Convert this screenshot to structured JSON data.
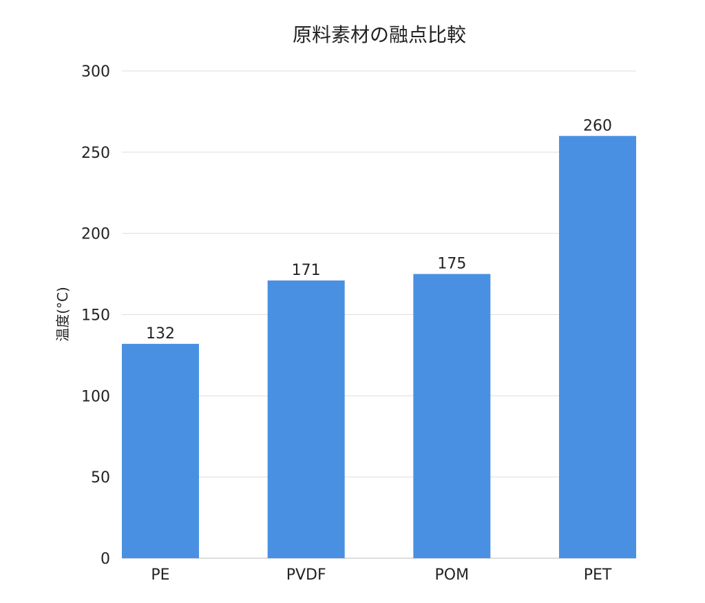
{
  "chart_data": {
    "type": "bar",
    "title": "原料素材の融点比較",
    "xlabel": "",
    "ylabel": "温度(°C)",
    "categories": [
      "PE",
      "PVDF",
      "POM",
      "PET"
    ],
    "values": [
      132,
      171,
      175,
      260
    ],
    "data_labels": [
      "132",
      "171",
      "175",
      "260"
    ],
    "ylim": [
      0,
      300
    ],
    "yticks": [
      0,
      50,
      100,
      150,
      200,
      250,
      300
    ],
    "ytick_labels": [
      "0",
      "50",
      "100",
      "150",
      "200",
      "250",
      "300"
    ],
    "grid": true,
    "legend": "none",
    "bar_color": "#4a90e2",
    "grid_color": "#dddddd"
  }
}
